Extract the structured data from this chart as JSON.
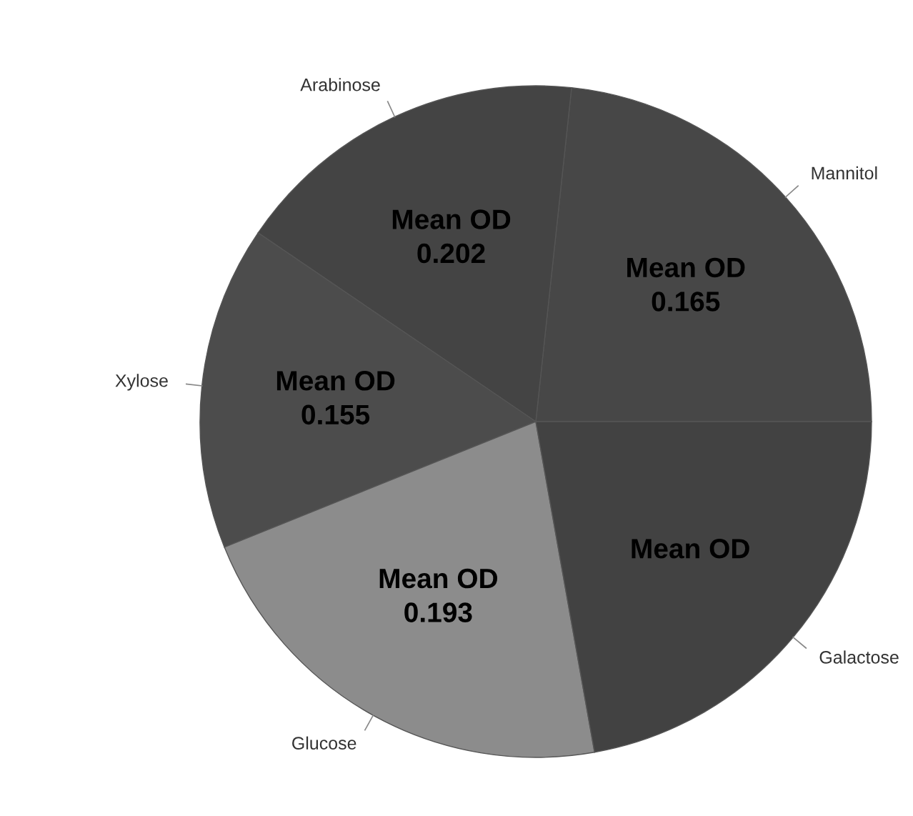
{
  "chart_data": {
    "type": "pie",
    "categories": [
      "Mannitol",
      "Arabinose",
      "Xylose",
      "Glucose",
      "Galactose"
    ],
    "values": [
      23.3,
      17.2,
      15.6,
      21.7,
      22.2
    ],
    "colors": [
      "#474747",
      "#444444",
      "#4c4c4c",
      "#8c8c8c",
      "#424242"
    ],
    "value_labels": [
      "Mean OD\n0.165",
      "Mean OD\n0.202",
      "Mean OD\n0.155",
      "Mean OD\n0.193",
      "Mean OD"
    ]
  }
}
